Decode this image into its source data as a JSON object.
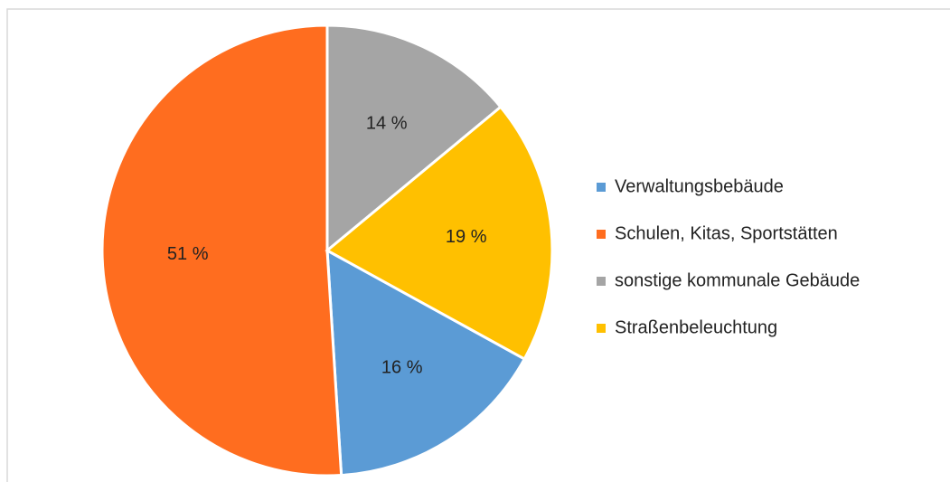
{
  "chart_data": {
    "type": "pie",
    "categories": [
      "Verwaltungsbebäude",
      "Schulen, Kitas, Sportstätten",
      "sonstige kommunale Gebäude",
      "Straßenbeleuchtung"
    ],
    "values": [
      16,
      51,
      14,
      19
    ],
    "value_labels": [
      "16 %",
      "51 %",
      "14 %",
      "19 %"
    ],
    "colors": [
      "#5b9bd5",
      "#ff6d1f",
      "#a5a5a5",
      "#ffc000"
    ],
    "legend": "right"
  }
}
